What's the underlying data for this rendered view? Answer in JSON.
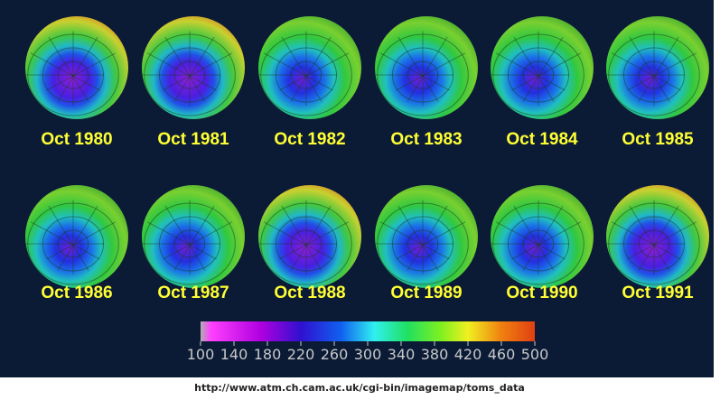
{
  "panels": [
    {
      "label": "Oct 1980"
    },
    {
      "label": "Oct 1981"
    },
    {
      "label": "Oct 1982"
    },
    {
      "label": "Oct 1983"
    },
    {
      "label": "Oct 1984"
    },
    {
      "label": "Oct 1985"
    },
    {
      "label": "Oct 1986"
    },
    {
      "label": "Oct 1987"
    },
    {
      "label": "Oct 1988"
    },
    {
      "label": "Oct 1989"
    },
    {
      "label": "Oct 1990"
    },
    {
      "label": "Oct 1991"
    }
  ],
  "colorbar": {
    "ticks": [
      100,
      140,
      180,
      220,
      260,
      300,
      340,
      380,
      420,
      460,
      500
    ]
  },
  "caption": "http://www.atm.ch.cam.ac.uk/cgi-bin/imagemap/toms_data"
}
